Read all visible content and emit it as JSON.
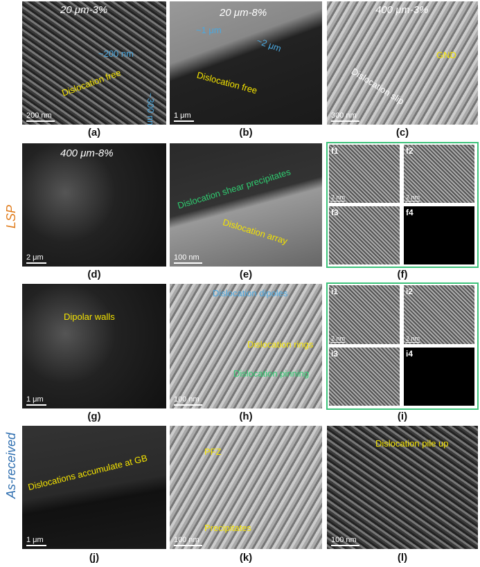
{
  "side_labels": {
    "lsp": "LSP",
    "as_received": "As-received",
    "lsp_color": "#e07b1a",
    "as_received_color": "#2f6fb0"
  },
  "panels": {
    "a": {
      "label": "(a)",
      "title": "20 μm-3%",
      "scale": "200 nm",
      "notes": [
        "~200 nm",
        "Dislocation free",
        "~300 nm"
      ]
    },
    "b": {
      "label": "(b)",
      "title": "20 μm-8%",
      "scale": "1 μm",
      "notes": [
        "~1 μm",
        "~2 μm",
        "Dislocation free"
      ]
    },
    "c": {
      "label": "(c)",
      "title": "400 μm-3%",
      "scale": "300 nm",
      "notes": [
        "GND",
        "Dislocation slip"
      ]
    },
    "d": {
      "label": "(d)",
      "title": "400 μm-8%",
      "scale": "2 μm"
    },
    "e": {
      "label": "(e)",
      "scale": "100 nm",
      "notes": [
        "Dislocation shear precipitates",
        "Dislocation array"
      ]
    },
    "f": {
      "label": "(f)",
      "subs": [
        {
          "label": "f1",
          "scale": "2 nm"
        },
        {
          "label": "f2",
          "scale": "2 nm"
        },
        {
          "label": "f3"
        },
        {
          "label": "f4"
        }
      ]
    },
    "g": {
      "label": "(g)",
      "scale": "1 μm",
      "notes": [
        "Dipolar walls"
      ]
    },
    "h": {
      "label": "(h)",
      "scale": "100 nm",
      "notes": [
        "Dislocation dipoles",
        "Dislocation rings",
        "Dislocation pinning"
      ]
    },
    "i": {
      "label": "(i)",
      "subs": [
        {
          "label": "i1",
          "scale": "2 nm"
        },
        {
          "label": "i2",
          "scale": "2 nm"
        },
        {
          "label": "i3"
        },
        {
          "label": "i4"
        }
      ]
    },
    "j": {
      "label": "(j)",
      "scale": "1 μm",
      "notes": [
        "Dislocations accumulate at GB"
      ]
    },
    "k": {
      "label": "(k)",
      "scale": "100 nm",
      "notes": [
        "PFZ",
        "Precipitates"
      ]
    },
    "l": {
      "label": "(l)",
      "scale": "100 nm",
      "notes": [
        "Dislocation pile up"
      ]
    }
  }
}
